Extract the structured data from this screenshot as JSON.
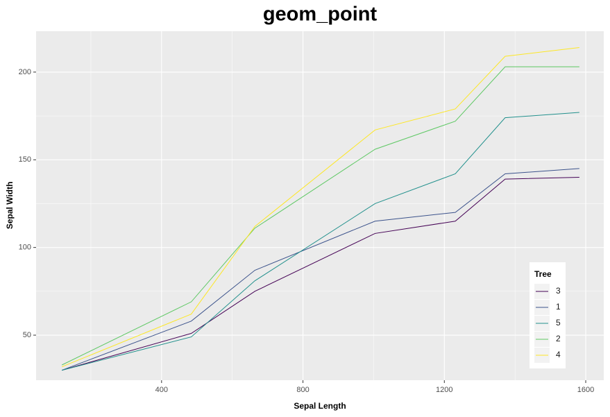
{
  "chart_data": {
    "type": "line",
    "title": "geom_point",
    "x_label": "Sepal Length",
    "y_label": "Sepal Width",
    "x": [
      118,
      484,
      664,
      1004,
      1231,
      1372,
      1582
    ],
    "legend_title": "Tree",
    "series": [
      {
        "name": "3",
        "color": "#440154",
        "values": [
          30,
          51,
          75,
          108,
          115,
          139,
          140
        ]
      },
      {
        "name": "1",
        "color": "#3B528B",
        "values": [
          30,
          58,
          87,
          115,
          120,
          142,
          145
        ]
      },
      {
        "name": "5",
        "color": "#21908C",
        "values": [
          30,
          49,
          81,
          125,
          142,
          174,
          177
        ]
      },
      {
        "name": "2",
        "color": "#5DC863",
        "values": [
          33,
          69,
          111,
          156,
          172,
          203,
          203
        ]
      },
      {
        "name": "4",
        "color": "#FDE725",
        "values": [
          32,
          62,
          112,
          167,
          179,
          209,
          214
        ]
      }
    ],
    "xlim": [
      45,
      1651
    ],
    "ylim": [
      24.3,
      223.3
    ],
    "xticks": [
      400,
      800,
      1200,
      1600
    ],
    "yticks": [
      50,
      100,
      150,
      200
    ],
    "xminor": [
      200,
      600,
      1000,
      1400
    ],
    "yminor": [
      75,
      125,
      175
    ],
    "grid": true,
    "legend_position": "bottom-right"
  }
}
